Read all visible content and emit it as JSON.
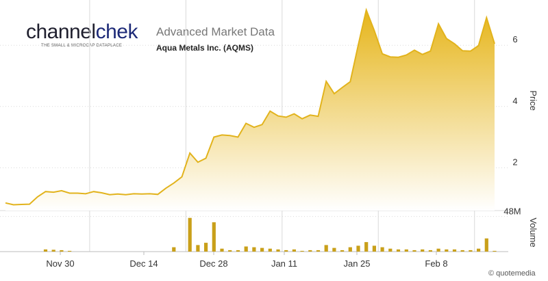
{
  "header": {
    "logo_text_main": "channel",
    "logo_text_accent": "chek",
    "logo_tagline": "THE SMALL & MICROCAP DATAPLACE",
    "title": "Advanced Market Data",
    "subtitle": "Aqua Metals Inc. (AQMS)"
  },
  "credit": "© quotemedia",
  "colors": {
    "accent": "#e2b31c",
    "fill_top": "#e6b51a",
    "fill_bottom": "#ffffff",
    "grid": "#d9d9d9"
  },
  "chart_data": [
    {
      "type": "area",
      "x_tick_labels": [
        "Nov 30",
        "Dec 14",
        "Dec 28",
        "Jan 11",
        "Jan 25",
        "Feb 8"
      ],
      "ylabel": "Price",
      "y_ticks": [
        2,
        4,
        6
      ],
      "ylim": [
        0.6,
        7.3
      ],
      "grid": "vertical and horizontal",
      "series": [
        {
          "values": [
            0.85,
            0.79,
            0.8,
            0.81,
            1.05,
            1.22,
            1.2,
            1.25,
            1.17,
            1.17,
            1.15,
            1.22,
            1.18,
            1.12,
            1.14,
            1.12,
            1.15,
            1.14,
            1.15,
            1.13,
            1.33,
            1.5,
            1.7,
            2.48,
            2.18,
            2.31,
            3.0,
            3.07,
            3.05,
            3.0,
            3.45,
            3.32,
            3.41,
            3.85,
            3.69,
            3.65,
            3.76,
            3.6,
            3.72,
            3.68,
            4.82,
            4.42,
            4.62,
            4.81,
            6.01,
            7.15,
            6.48,
            5.72,
            5.62,
            5.61,
            5.68,
            5.84,
            5.7,
            5.81,
            6.7,
            6.22,
            6.05,
            5.82,
            5.81,
            5.99,
            6.9,
            6.05
          ]
        }
      ]
    },
    {
      "type": "bar",
      "ylabel": "Volume",
      "y_ticks": [
        "48M"
      ],
      "ylim": [
        0,
        56
      ],
      "series": [
        {
          "values": [
            0,
            0,
            0,
            0,
            0,
            3,
            2.5,
            2,
            1,
            0,
            0,
            0,
            0,
            0,
            0,
            0,
            0,
            0,
            0,
            0,
            0,
            6,
            0,
            46,
            9,
            12,
            40,
            4,
            2,
            2,
            7,
            6,
            5,
            4,
            3,
            2,
            3,
            1,
            2,
            2,
            9,
            5,
            2,
            6,
            8,
            13,
            8,
            6,
            4,
            3,
            3,
            2,
            3,
            2,
            4,
            3,
            3,
            2,
            2,
            4,
            18,
            1
          ]
        }
      ]
    }
  ]
}
